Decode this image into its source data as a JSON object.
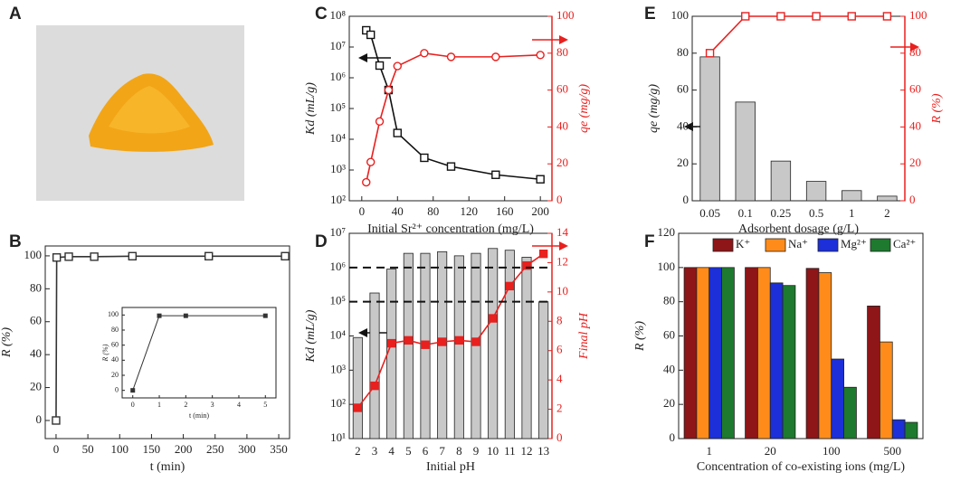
{
  "photo": {
    "label": "A"
  },
  "chart_data": [
    {
      "type": "line",
      "panel": "B",
      "xlabel": "t (min)",
      "ylabel": "R (%)",
      "x": [
        0,
        1,
        20,
        60,
        120,
        240,
        360
      ],
      "series": [
        {
          "color": "#333333",
          "marker": "open-square",
          "values": [
            0,
            99,
            99.5,
            99.5,
            99.8,
            99.8,
            99.8
          ]
        }
      ],
      "xlim": [
        -17,
        367
      ],
      "ylim": [
        -11,
        106
      ],
      "xticks": [
        0,
        50,
        100,
        150,
        200,
        250,
        300,
        350
      ],
      "yticks": [
        0,
        20,
        40,
        60,
        80,
        100
      ],
      "inset": {
        "type": "line",
        "xlabel": "t (min)",
        "ylabel": "R (%)",
        "x": [
          0,
          1,
          2,
          5
        ],
        "series": [
          {
            "color": "#333333",
            "marker": "square",
            "values": [
              0,
              99,
              99,
              99
            ]
          }
        ],
        "xlim": [
          -0.4,
          5.4
        ],
        "ylim": [
          -10,
          110
        ],
        "xticks": [
          0,
          1,
          2,
          3,
          4,
          5
        ],
        "yticks": [
          0,
          20,
          40,
          60,
          80,
          100
        ]
      }
    },
    {
      "type": "line",
      "panel": "C",
      "xlabel": "Initial Sr²⁺ concentration (mg/L)",
      "ylabel": "Kd (mL/g)",
      "y2label": "qe (mg/g)",
      "yscale": "log",
      "x": [
        5,
        10,
        20,
        30,
        40,
        70,
        100,
        150,
        200
      ],
      "series": [
        {
          "color": "#111111",
          "marker": "open-square",
          "values": [
            35000000,
            25000000,
            2500000,
            400000,
            16000,
            2500,
            1300,
            700,
            500
          ]
        },
        {
          "color": "#e8201e",
          "marker": "open-circle",
          "axis": "y2",
          "values": [
            10,
            21,
            43,
            60,
            73,
            80,
            78,
            78,
            79
          ]
        }
      ],
      "xlim": [
        -14,
        213
      ],
      "ylim": [
        100,
        100000000
      ],
      "xticks": [
        0,
        40,
        80,
        120,
        160,
        200
      ],
      "yticks": [
        {
          "value": 100,
          "label": "10²"
        },
        {
          "value": 1000,
          "label": "10³"
        },
        {
          "value": 10000,
          "label": "10⁴"
        },
        {
          "value": 100000,
          "label": "10⁵"
        },
        {
          "value": 1000000,
          "label": "10⁶"
        },
        {
          "value": 10000000,
          "label": "10⁷"
        },
        {
          "value": 100000000,
          "label": "10⁸"
        }
      ],
      "y2lim": [
        0,
        100
      ],
      "y2ticks": [
        0,
        20,
        40,
        60,
        80,
        100
      ]
    },
    {
      "type": "bar",
      "panel": "D",
      "xlabel": "Initial pH",
      "ylabel": "Kd (mL/g)",
      "y2label": "Final pH",
      "yscale": "log",
      "categories": [
        "2",
        "3",
        "4",
        "5",
        "6",
        "7",
        "8",
        "9",
        "10",
        "11",
        "12",
        "13"
      ],
      "series": [
        {
          "color": "#c8c8c8",
          "values": [
            9000,
            180000,
            900000,
            2600000,
            2600000,
            2900000,
            2200000,
            2600000,
            3600000,
            3200000,
            2000000,
            100000
          ]
        },
        {
          "type": "line",
          "color": "#e8201e",
          "marker": "square",
          "axis": "y2",
          "values": [
            2.1,
            3.6,
            6.5,
            6.7,
            6.4,
            6.6,
            6.7,
            6.6,
            8.2,
            10.4,
            11.8,
            12.6
          ]
        }
      ],
      "hlines": [
        1000000,
        100000
      ],
      "ylim": [
        10,
        10000000
      ],
      "yticks": [
        {
          "value": 10,
          "label": "10¹"
        },
        {
          "value": 100,
          "label": "10²"
        },
        {
          "value": 1000,
          "label": "10³"
        },
        {
          "value": 10000,
          "label": "10⁴"
        },
        {
          "value": 100000,
          "label": "10⁵"
        },
        {
          "value": 1000000,
          "label": "10⁶"
        },
        {
          "value": 10000000,
          "label": "10⁷"
        }
      ],
      "y2lim": [
        0,
        14
      ],
      "y2ticks": [
        0,
        2,
        4,
        6,
        8,
        10,
        12,
        14
      ]
    },
    {
      "type": "bar",
      "panel": "E",
      "xlabel": "Adsorbent dosage (g/L)",
      "ylabel": "qe (mg/g)",
      "y2label": "R (%)",
      "categories": [
        "0.05",
        "0.1",
        "0.25",
        "0.5",
        "1",
        "2"
      ],
      "series": [
        {
          "color": "#c8c8c8",
          "values": [
            78,
            53.5,
            21.5,
            10.5,
            5.5,
            2.5
          ]
        },
        {
          "type": "line",
          "color": "#e8201e",
          "marker": "open-square",
          "axis": "y2",
          "values": [
            80,
            100,
            100,
            100,
            100,
            100
          ]
        }
      ],
      "ylim": [
        0,
        100
      ],
      "yticks": [
        0,
        20,
        40,
        60,
        80,
        100
      ],
      "y2lim": [
        0,
        100
      ],
      "y2ticks": [
        0,
        20,
        40,
        60,
        80,
        100
      ]
    },
    {
      "type": "bar",
      "panel": "F",
      "xlabel": "Concentration of co-existing ions (mg/L)",
      "ylabel": "R (%)",
      "categories": [
        "1",
        "20",
        "100",
        "500"
      ],
      "legend": "top",
      "series": [
        {
          "name": "K⁺",
          "color": "#8e1518",
          "values": [
            100,
            100,
            99.5,
            77.5
          ]
        },
        {
          "name": "Na⁺",
          "color": "#ff8c1a",
          "values": [
            100,
            100,
            97,
            56.5
          ]
        },
        {
          "name": "Mg²⁺",
          "color": "#1c2fd9",
          "values": [
            100,
            91,
            46.5,
            11
          ]
        },
        {
          "name": "Ca²⁺",
          "color": "#1d7a2e",
          "values": [
            100,
            89.5,
            30,
            9.5
          ]
        }
      ],
      "ylim": [
        0,
        120
      ],
      "yticks": [
        0,
        20,
        40,
        60,
        80,
        100,
        120
      ]
    }
  ]
}
